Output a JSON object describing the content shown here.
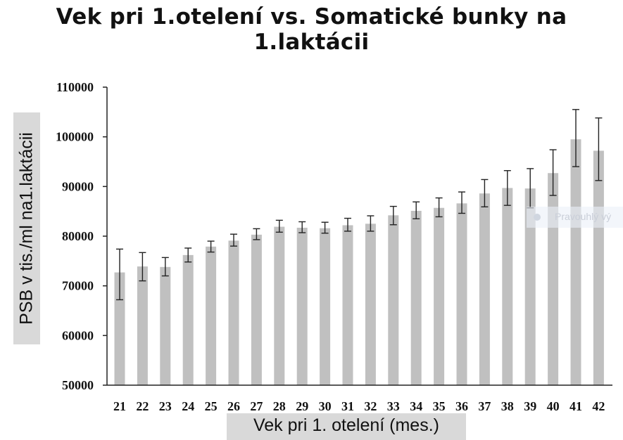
{
  "title": "Vek pri 1.otelení vs. Somatické bunky na 1.laktácii",
  "chart_data": {
    "type": "bar",
    "title": "Vek pri 1.otelení vs. Somatické bunky na 1.laktácii",
    "xlabel": "Vek pri 1. otelení (mes.)",
    "ylabel": "PSB v tis./ml na1.laktácii",
    "ylim": [
      50000,
      110000
    ],
    "yticks": [
      "50000",
      "60000",
      "70000",
      "80000",
      "90000",
      "100000",
      "110000"
    ],
    "grid": false,
    "bar_color": "#c0c0c0",
    "categories": [
      "21",
      "22",
      "23",
      "24",
      "25",
      "26",
      "27",
      "28",
      "29",
      "30",
      "31",
      "32",
      "33",
      "34",
      "35",
      "36",
      "37",
      "38",
      "39",
      "40",
      "41",
      "42"
    ],
    "values": [
      72700,
      73900,
      73800,
      76200,
      77900,
      79100,
      80300,
      81900,
      81700,
      81600,
      82200,
      82500,
      84200,
      85100,
      85700,
      86600,
      88600,
      89700,
      89600,
      92700,
      99500,
      97200
    ],
    "error_low": [
      67200,
      71000,
      72000,
      74800,
      76800,
      78000,
      79300,
      80800,
      80700,
      80600,
      81000,
      81000,
      82300,
      83500,
      83900,
      84600,
      85900,
      86200,
      85700,
      88200,
      94000,
      91200
    ],
    "error_high": [
      77400,
      76700,
      75700,
      77600,
      79000,
      80400,
      81500,
      83200,
      82900,
      82800,
      83600,
      84100,
      86000,
      86900,
      87700,
      88900,
      91400,
      93200,
      93600,
      97400,
      105500,
      103800
    ]
  },
  "watermark": {
    "text": "Pravouhlý vý"
  }
}
